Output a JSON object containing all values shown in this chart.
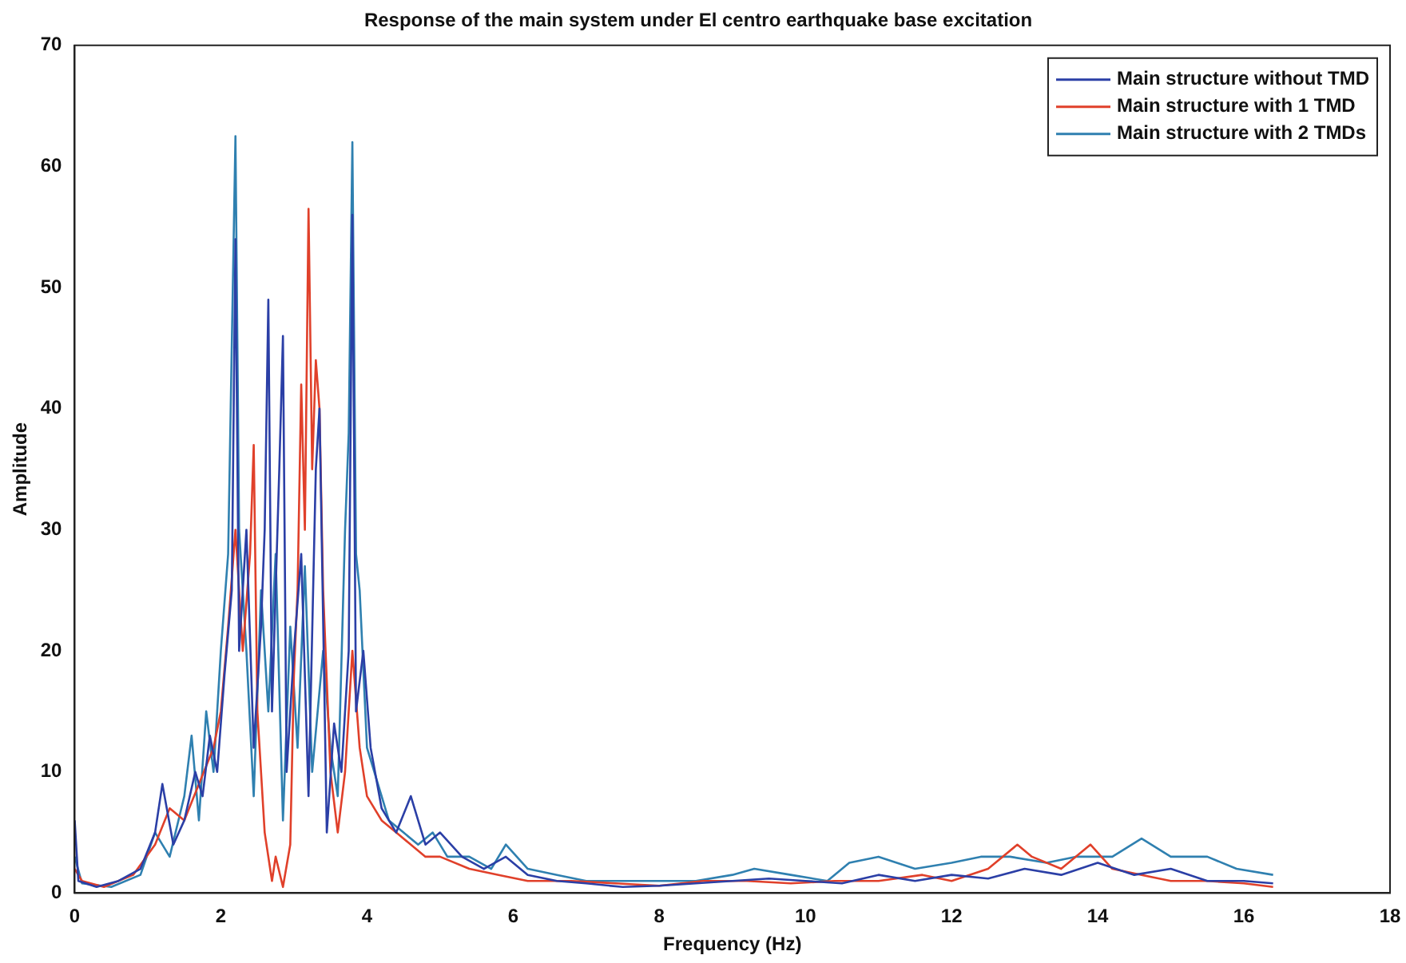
{
  "chart_data": {
    "type": "line",
    "title": "Response of the main system under El centro earthquake base excitation",
    "xlabel": "Frequency (Hz)",
    "ylabel": "Amplitude",
    "xlim": [
      0,
      18
    ],
    "xticks": [
      0,
      2,
      4,
      6,
      8,
      10,
      12,
      14,
      16,
      18
    ],
    "ylim": [
      0,
      70
    ],
    "yticks": [
      0,
      10,
      20,
      30,
      40,
      50,
      60,
      70
    ],
    "grid": false,
    "legend": "top right",
    "marker": "none",
    "line_style": "solid",
    "series": [
      {
        "name": "Main structure without TMD",
        "color": "#2b3fa6",
        "x": [
          0,
          0.05,
          0.3,
          0.6,
          0.9,
          1.1,
          1.2,
          1.35,
          1.5,
          1.65,
          1.75,
          1.85,
          1.95,
          2.05,
          2.15,
          2.2,
          2.25,
          2.35,
          2.45,
          2.55,
          2.6,
          2.65,
          2.7,
          2.8,
          2.85,
          2.9,
          3.0,
          3.1,
          3.2,
          3.3,
          3.35,
          3.45,
          3.55,
          3.65,
          3.75,
          3.8,
          3.85,
          3.95,
          4.05,
          4.2,
          4.4,
          4.6,
          4.8,
          5.0,
          5.3,
          5.6,
          5.9,
          6.2,
          6.6,
          7,
          7.5,
          8,
          8.5,
          9,
          9.5,
          10,
          10.5,
          11,
          11.5,
          12,
          12.5,
          13,
          13.5,
          14,
          14.5,
          15,
          15.5,
          16,
          16.4
        ],
        "values": [
          6,
          1,
          0.5,
          1,
          2,
          5,
          9,
          4,
          6,
          10,
          8,
          13,
          10,
          18,
          25,
          54,
          20,
          30,
          12,
          22,
          30,
          49,
          15,
          35,
          46,
          10,
          20,
          28,
          8,
          35,
          40,
          5,
          14,
          10,
          20,
          56,
          15,
          20,
          12,
          7,
          5,
          8,
          4,
          5,
          3,
          2,
          3,
          1.5,
          1,
          0.8,
          0.5,
          0.6,
          0.8,
          1,
          1.2,
          1,
          0.8,
          1.5,
          1,
          1.5,
          1.2,
          2,
          1.5,
          2.5,
          1.5,
          2,
          1,
          1,
          0.8
        ]
      },
      {
        "name": "Main structure with 1 TMD",
        "color": "#e0402a",
        "x": [
          0,
          0.1,
          0.4,
          0.8,
          1.1,
          1.3,
          1.5,
          1.7,
          1.9,
          2.0,
          2.1,
          2.2,
          2.3,
          2.4,
          2.45,
          2.5,
          2.6,
          2.7,
          2.75,
          2.85,
          2.95,
          3.0,
          3.05,
          3.1,
          3.15,
          3.2,
          3.25,
          3.3,
          3.35,
          3.4,
          3.5,
          3.6,
          3.7,
          3.8,
          3.9,
          4.0,
          4.2,
          4.4,
          4.6,
          4.8,
          5.0,
          5.4,
          5.8,
          6.2,
          6.8,
          7.4,
          8,
          8.6,
          9.2,
          9.8,
          10.4,
          11,
          11.6,
          12,
          12.5,
          12.9,
          13.1,
          13.5,
          13.9,
          14.2,
          14.6,
          15,
          15.5,
          16,
          16.4
        ],
        "values": [
          2,
          1,
          0.5,
          1.5,
          4,
          7,
          6,
          9,
          12,
          15,
          22,
          30,
          20,
          28,
          37,
          15,
          5,
          1,
          3,
          0.5,
          4,
          18,
          25,
          42,
          30,
          56.5,
          35,
          44,
          40,
          25,
          10,
          5,
          10,
          20,
          12,
          8,
          6,
          5,
          4,
          3,
          3,
          2,
          1.5,
          1,
          1,
          0.8,
          0.6,
          1,
          1,
          0.8,
          1,
          1,
          1.5,
          1,
          2,
          4,
          3,
          2,
          4,
          2,
          1.5,
          1,
          1,
          0.8,
          0.5
        ]
      },
      {
        "name": "Main structure with 2 TMDs",
        "color": "#2f80b0",
        "x": [
          0,
          0.1,
          0.5,
          0.9,
          1.1,
          1.3,
          1.5,
          1.6,
          1.7,
          1.8,
          1.9,
          2.0,
          2.1,
          2.2,
          2.25,
          2.35,
          2.45,
          2.55,
          2.65,
          2.75,
          2.85,
          2.95,
          3.05,
          3.15,
          3.25,
          3.4,
          3.5,
          3.6,
          3.7,
          3.75,
          3.8,
          3.85,
          3.9,
          4.0,
          4.1,
          4.3,
          4.5,
          4.7,
          4.9,
          5.1,
          5.4,
          5.7,
          5.9,
          6.2,
          6.6,
          7,
          7.5,
          8,
          8.5,
          9,
          9.3,
          9.8,
          10.3,
          10.6,
          11,
          11.5,
          12,
          12.4,
          12.8,
          13.3,
          13.7,
          14.2,
          14.6,
          15,
          15.5,
          15.9,
          16.4
        ],
        "values": [
          3,
          0.8,
          0.5,
          1.5,
          5,
          3,
          8,
          13,
          6,
          15,
          10,
          20,
          28,
          62.5,
          30,
          20,
          8,
          25,
          15,
          28,
          6,
          22,
          12,
          27,
          10,
          20,
          12,
          8,
          30,
          38,
          62,
          28,
          25,
          12,
          10,
          6,
          5,
          4,
          5,
          3,
          3,
          2,
          4,
          2,
          1.5,
          1,
          1,
          1,
          1,
          1.5,
          2,
          1.5,
          1,
          2.5,
          3,
          2,
          2.5,
          3,
          3,
          2.5,
          3,
          3,
          4.5,
          3,
          3,
          2,
          1.5
        ]
      }
    ]
  }
}
